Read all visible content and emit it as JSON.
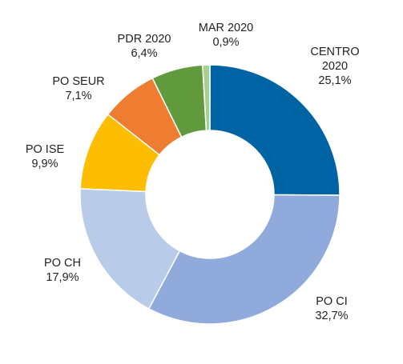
{
  "chart_data": {
    "type": "donut",
    "title": "",
    "slices": [
      {
        "name": "CENTRO 2020",
        "name_lines": [
          "CENTRO",
          "2020"
        ],
        "value_label": "25,1%",
        "value": 25.1,
        "color": "#0063a3"
      },
      {
        "name": "PO CI",
        "name_lines": [
          "PO CI"
        ],
        "value_label": "32,7%",
        "value": 32.7,
        "color": "#90abdb"
      },
      {
        "name": "PO CH",
        "name_lines": [
          "PO CH"
        ],
        "value_label": "17,9%",
        "value": 17.9,
        "color": "#b8cbe9"
      },
      {
        "name": "PO ISE",
        "name_lines": [
          "PO ISE"
        ],
        "value_label": "9,9%",
        "value": 9.9,
        "color": "#fdbd00"
      },
      {
        "name": "PO SEUR",
        "name_lines": [
          "PO SEUR"
        ],
        "value_label": "7,1%",
        "value": 7.1,
        "color": "#ee7d31"
      },
      {
        "name": "PDR 2020",
        "name_lines": [
          "PDR 2020"
        ],
        "value_label": "6,4%",
        "value": 6.4,
        "color": "#609a3c"
      },
      {
        "name": "MAR 2020",
        "name_lines": [
          "MAR 2020"
        ],
        "value_label": "0,9%",
        "value": 0.9,
        "color": "#a8d08e"
      }
    ],
    "start": "12 o'clock",
    "direction": "clockwise",
    "legend": "none"
  }
}
